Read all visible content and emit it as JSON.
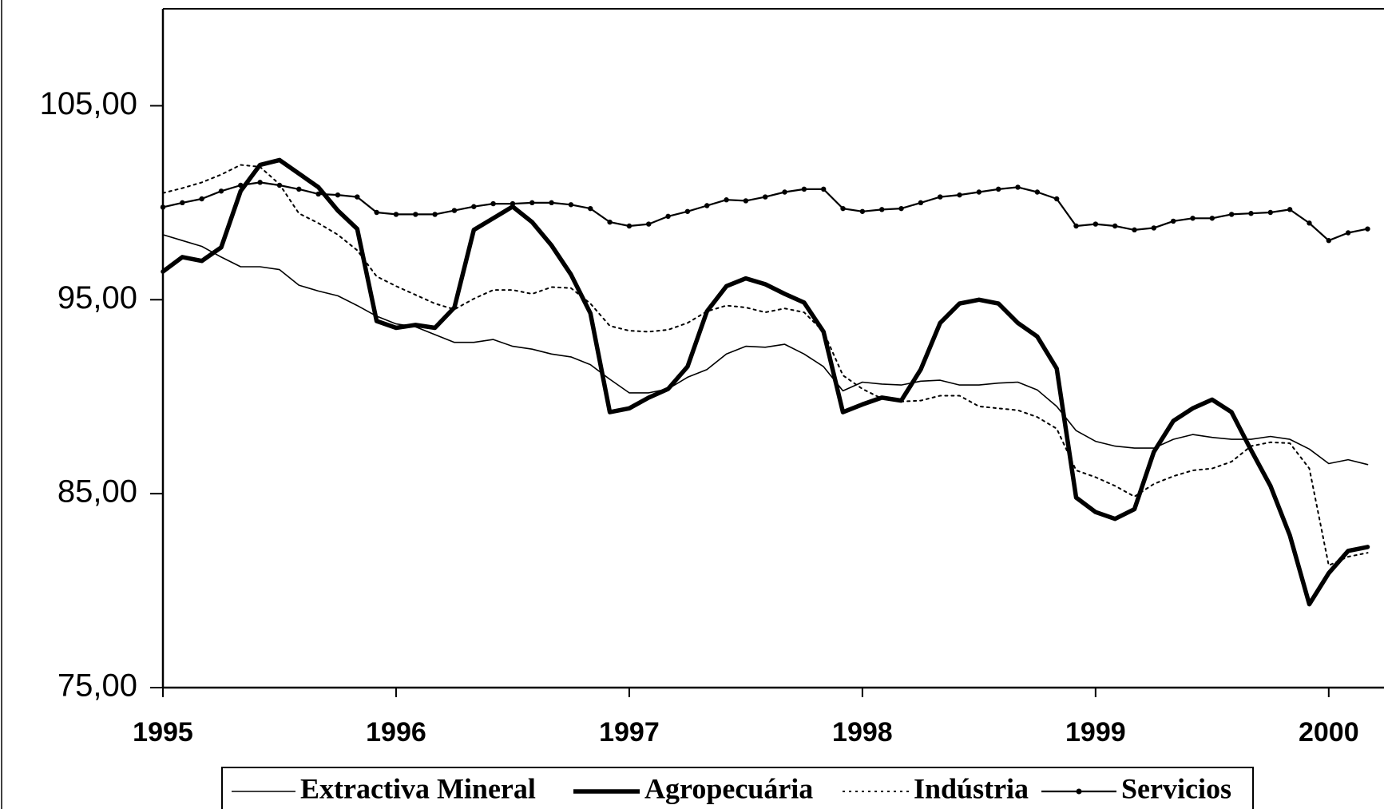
{
  "chart_data": {
    "type": "line",
    "categories": [
      "1995",
      null,
      null,
      null,
      null,
      null,
      null,
      null,
      null,
      null,
      null,
      null,
      "1996",
      null,
      null,
      null,
      null,
      null,
      null,
      null,
      null,
      null,
      null,
      null,
      "1997",
      null,
      null,
      null,
      null,
      null,
      null,
      null,
      null,
      null,
      null,
      null,
      "1998",
      null,
      null,
      null,
      null,
      null,
      null,
      null,
      null,
      null,
      null,
      null,
      "1999",
      null,
      null,
      null,
      null,
      null,
      null,
      null,
      null,
      null,
      null,
      null,
      "2000",
      null,
      null
    ],
    "ylim": [
      75,
      110
    ],
    "yticks": [
      {
        "value": 75,
        "label": "75,00"
      },
      {
        "value": 85,
        "label": "85,00"
      },
      {
        "value": 95,
        "label": "95,00"
      },
      {
        "value": 105,
        "label": "105,00"
      }
    ],
    "series": [
      {
        "name": "Extractiva Mineral",
        "color": "#000000",
        "width": 1.6,
        "dash": null,
        "marker": false,
        "values": [
          98.35,
          98.05,
          97.75,
          97.2,
          96.7,
          96.7,
          96.55,
          95.75,
          95.45,
          95.2,
          94.7,
          94.15,
          93.75,
          93.6,
          93.2,
          92.8,
          92.8,
          92.95,
          92.6,
          92.45,
          92.2,
          92.05,
          91.65,
          90.9,
          90.2,
          90.2,
          90.4,
          91.0,
          91.4,
          92.2,
          92.6,
          92.55,
          92.7,
          92.2,
          91.55,
          90.3,
          90.75,
          90.65,
          90.6,
          90.8,
          90.85,
          90.6,
          90.6,
          90.7,
          90.75,
          90.35,
          89.5,
          88.25,
          87.7,
          87.45,
          87.35,
          87.35,
          87.8,
          88.05,
          87.9,
          87.8,
          87.8,
          87.95,
          87.8,
          87.3,
          86.55,
          86.75,
          86.5
        ]
      },
      {
        "name": "Agropecuária",
        "color": "#000000",
        "width": 5.5,
        "dash": null,
        "marker": false,
        "values": [
          96.45,
          97.2,
          97.0,
          97.7,
          100.6,
          101.95,
          102.2,
          101.5,
          100.8,
          99.6,
          98.65,
          93.9,
          93.55,
          93.7,
          93.55,
          94.6,
          98.6,
          99.2,
          99.8,
          99.0,
          97.8,
          96.3,
          94.3,
          89.2,
          89.4,
          89.95,
          90.4,
          91.55,
          94.4,
          95.7,
          96.1,
          95.8,
          95.3,
          94.85,
          93.35,
          89.2,
          89.6,
          89.95,
          89.8,
          91.4,
          93.8,
          94.8,
          95.0,
          94.8,
          93.8,
          93.1,
          91.45,
          84.8,
          84.05,
          83.7,
          84.2,
          87.15,
          88.75,
          89.4,
          89.85,
          89.2,
          87.25,
          85.4,
          82.85,
          79.3,
          80.9,
          82.05,
          82.25
        ]
      },
      {
        "name": "Indústria",
        "color": "#000000",
        "width": 2,
        "dash": "3,5",
        "marker": false,
        "values": [
          100.5,
          100.75,
          101.05,
          101.45,
          101.95,
          101.85,
          100.95,
          99.45,
          98.95,
          98.35,
          97.55,
          96.2,
          95.7,
          95.25,
          94.8,
          94.5,
          95.05,
          95.5,
          95.5,
          95.3,
          95.65,
          95.6,
          94.8,
          93.65,
          93.4,
          93.35,
          93.45,
          93.8,
          94.4,
          94.7,
          94.6,
          94.35,
          94.55,
          94.35,
          93.35,
          91.1,
          90.4,
          89.9,
          89.75,
          89.8,
          90.05,
          90.05,
          89.5,
          89.4,
          89.3,
          88.95,
          88.35,
          86.2,
          85.85,
          85.4,
          84.85,
          85.5,
          85.9,
          86.2,
          86.3,
          86.65,
          87.45,
          87.65,
          87.6,
          86.3,
          81.3,
          81.75,
          81.95
        ]
      },
      {
        "name": "Servicios",
        "color": "#000000",
        "width": 2.2,
        "dash": null,
        "marker": true,
        "values": [
          99.77,
          100.0,
          100.2,
          100.6,
          100.9,
          101.05,
          100.9,
          100.7,
          100.45,
          100.4,
          100.3,
          99.5,
          99.4,
          99.4,
          99.4,
          99.6,
          99.8,
          99.95,
          99.95,
          100.0,
          100.0,
          99.9,
          99.7,
          99.0,
          98.8,
          98.9,
          99.3,
          99.55,
          99.85,
          100.15,
          100.1,
          100.3,
          100.55,
          100.7,
          100.7,
          99.7,
          99.55,
          99.65,
          99.7,
          100.0,
          100.3,
          100.4,
          100.55,
          100.7,
          100.8,
          100.55,
          100.2,
          98.8,
          98.9,
          98.8,
          98.6,
          98.7,
          99.05,
          99.2,
          99.2,
          99.4,
          99.45,
          99.5,
          99.65,
          98.95,
          98.05,
          98.45,
          98.65
        ]
      }
    ]
  }
}
